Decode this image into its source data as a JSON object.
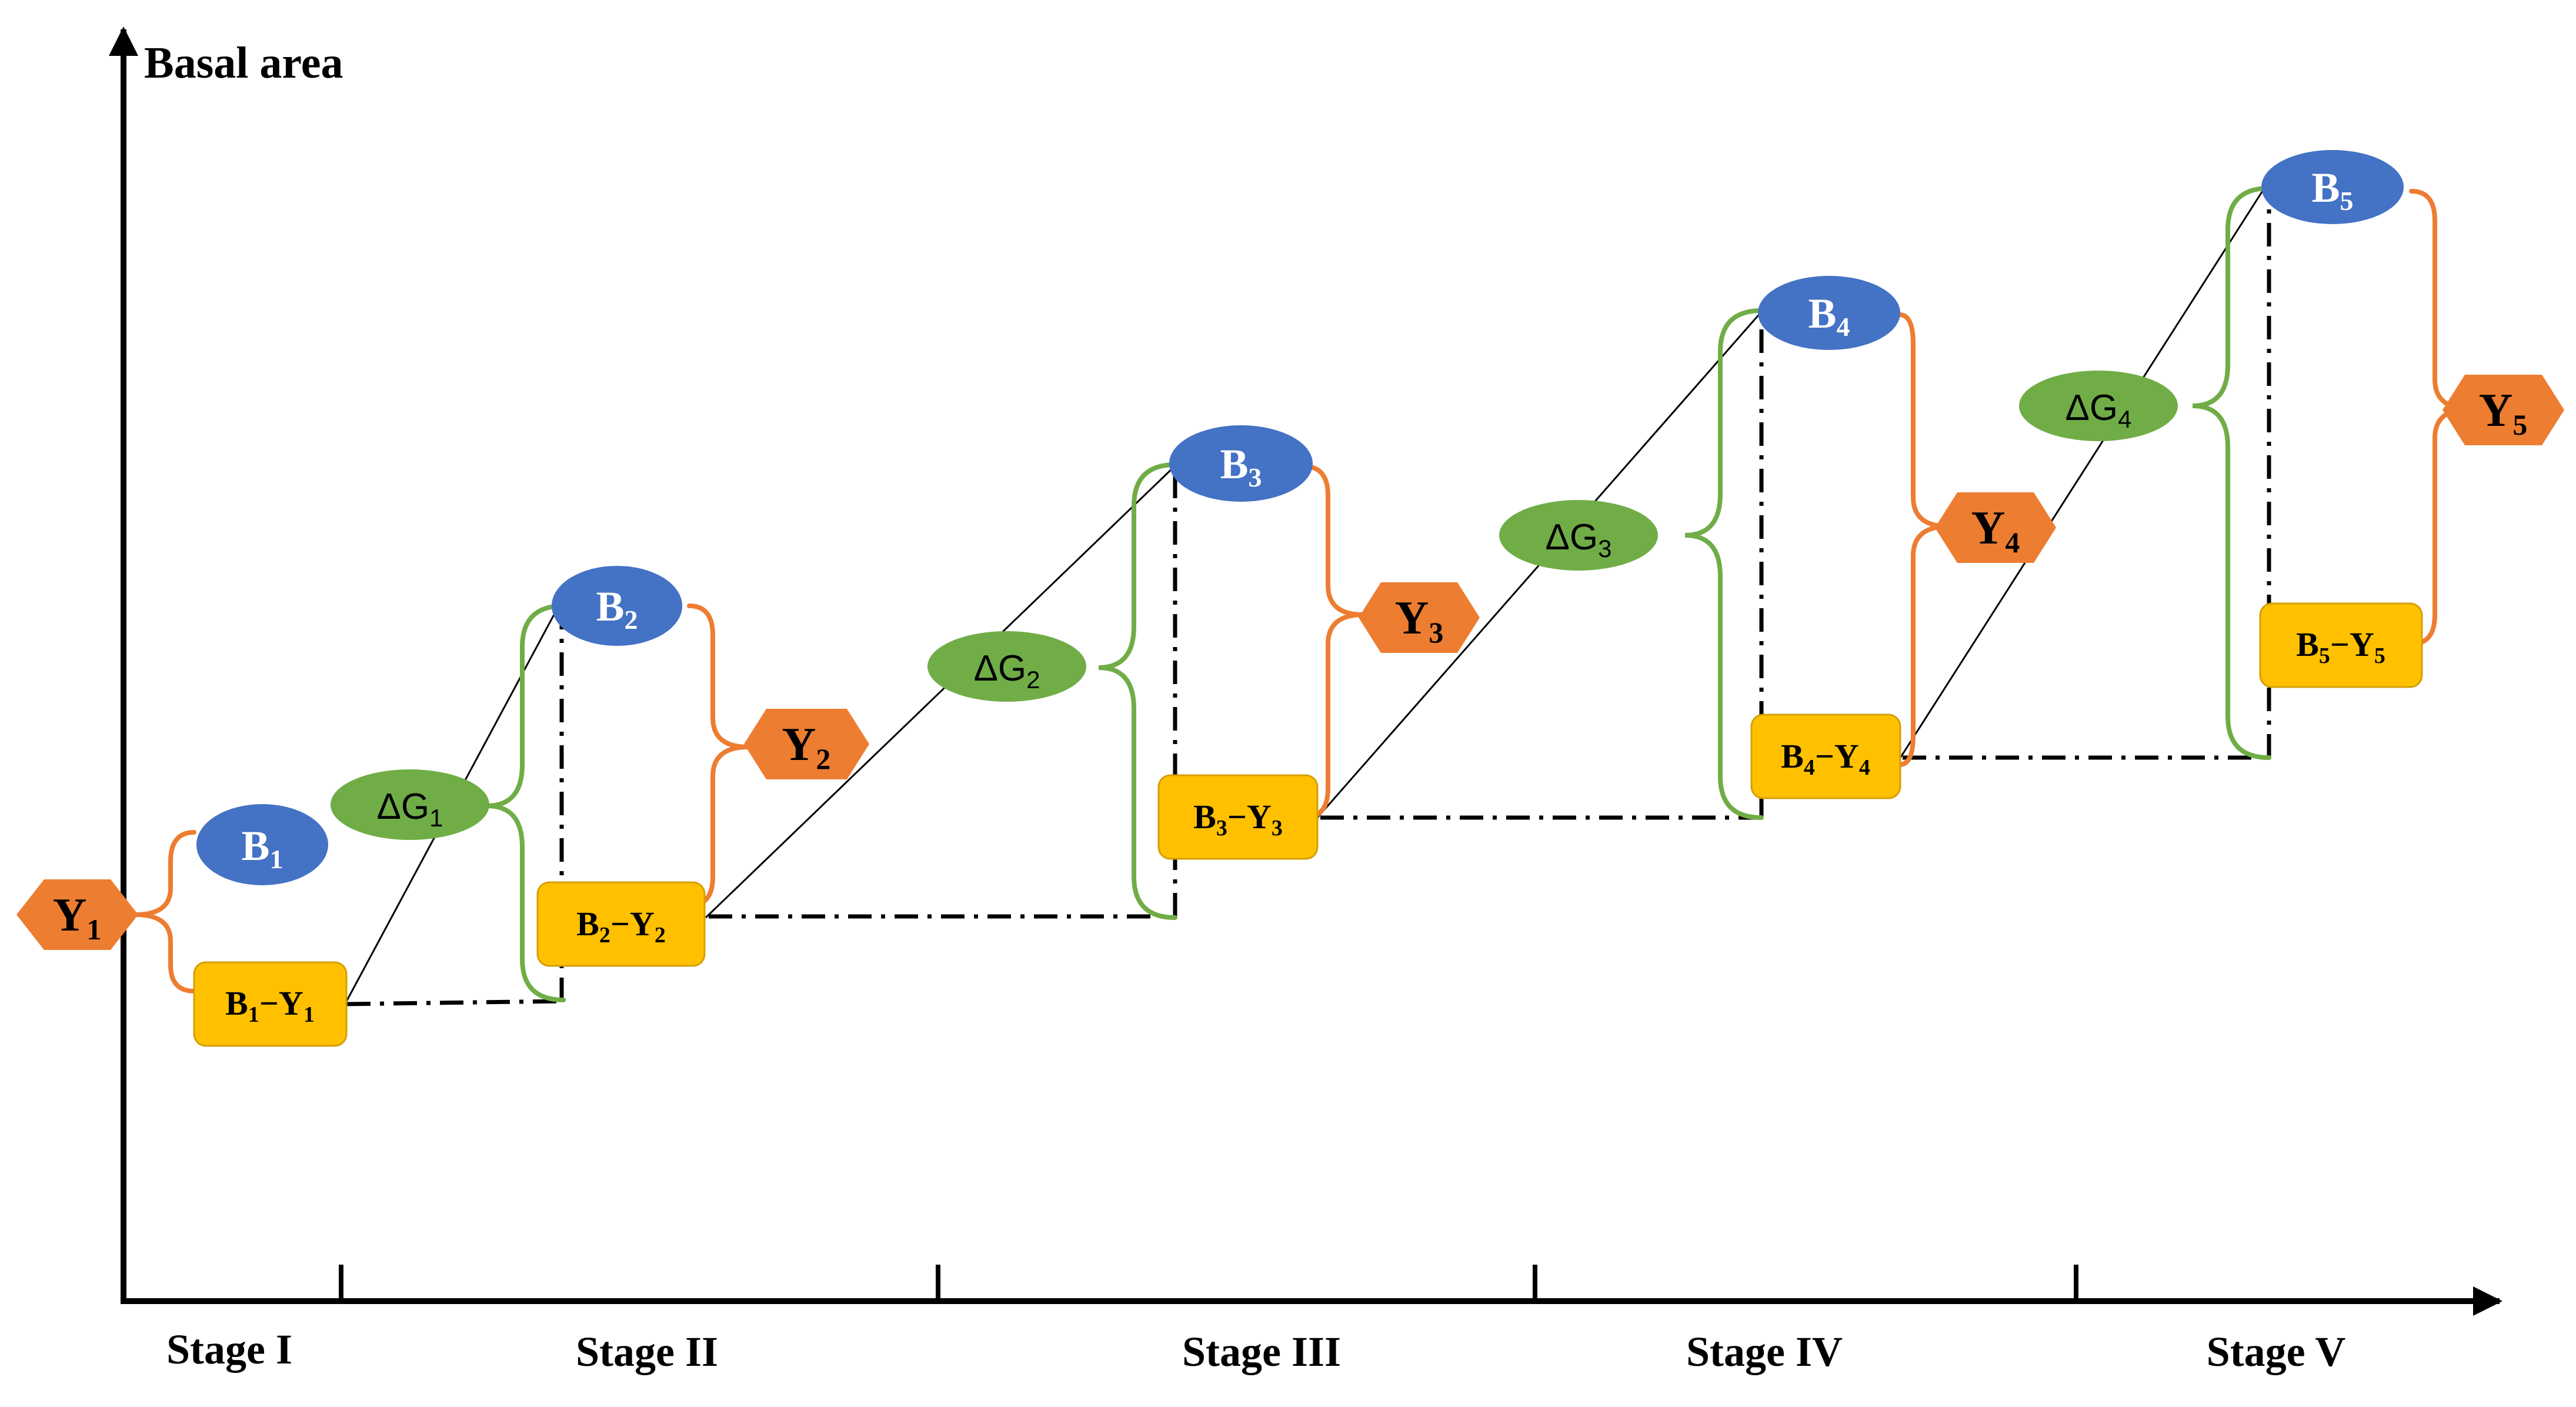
{
  "axis": {
    "y_label": "Basal area",
    "stages": [
      "Stage I",
      "Stage II",
      "Stage III",
      "Stage IV",
      "Stage V"
    ]
  },
  "colors": {
    "blue": "#4472C4",
    "green": "#70AD47",
    "orange": "#ED7D31",
    "yellow": "#FFC000",
    "text_dark": "#000000",
    "text_light": "#ffffff"
  },
  "nodes": {
    "y1": {
      "base": "Y",
      "sub": "1"
    },
    "y2": {
      "base": "Y",
      "sub": "2"
    },
    "y3": {
      "base": "Y",
      "sub": "3"
    },
    "y4": {
      "base": "Y",
      "sub": "4"
    },
    "y5": {
      "base": "Y",
      "sub": "5"
    },
    "b1": {
      "base": "B",
      "sub": "1"
    },
    "b2": {
      "base": "B",
      "sub": "2"
    },
    "b3": {
      "base": "B",
      "sub": "3"
    },
    "b4": {
      "base": "B",
      "sub": "4"
    },
    "b5": {
      "base": "B",
      "sub": "5"
    },
    "g1": {
      "base": "ΔG",
      "sub": "1"
    },
    "g2": {
      "base": "ΔG",
      "sub": "2"
    },
    "g3": {
      "base": "ΔG",
      "sub": "3"
    },
    "g4": {
      "base": "ΔG",
      "sub": "4"
    },
    "by1": {
      "b": "B",
      "bs": "1",
      "op": "−",
      "y": "Y",
      "ys": "1"
    },
    "by2": {
      "b": "B",
      "bs": "2",
      "op": "−",
      "y": "Y",
      "ys": "2"
    },
    "by3": {
      "b": "B",
      "bs": "3",
      "op": "−",
      "y": "Y",
      "ys": "3"
    },
    "by4": {
      "b": "B",
      "bs": "4",
      "op": "−",
      "y": "Y",
      "ys": "4"
    },
    "by5": {
      "b": "B",
      "bs": "5",
      "op": "−",
      "y": "Y",
      "ys": "5"
    }
  }
}
